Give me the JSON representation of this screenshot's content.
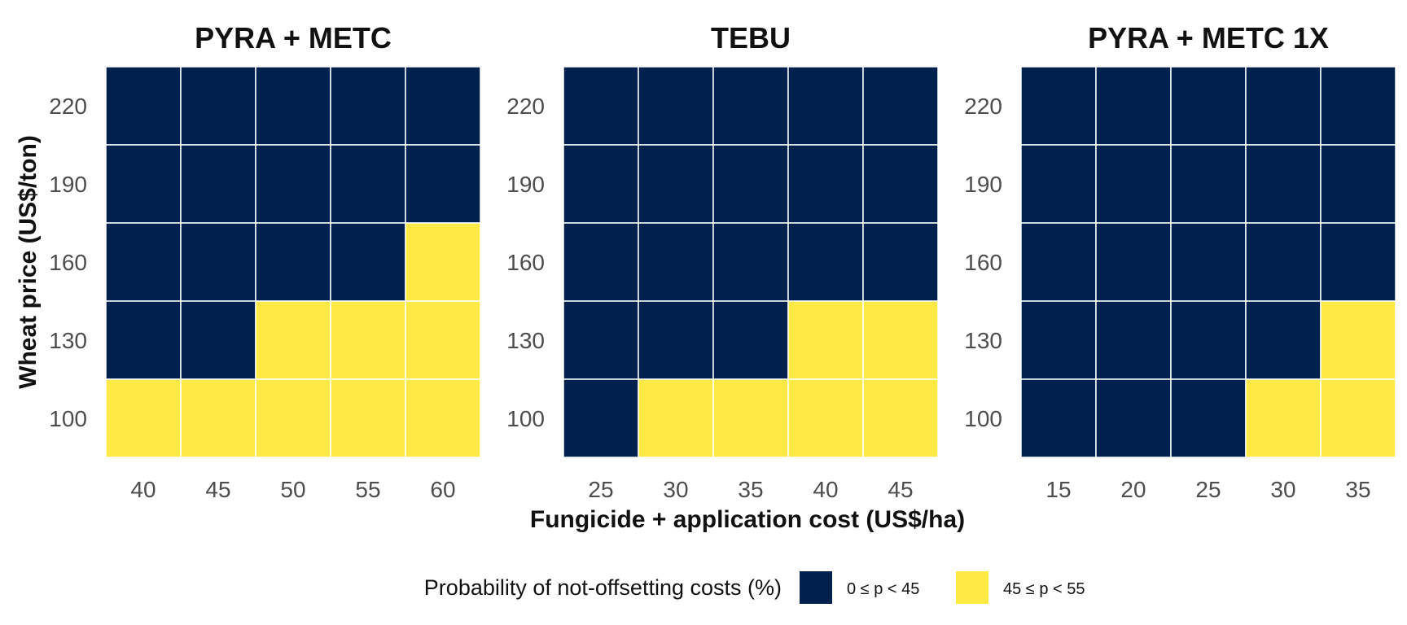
{
  "chart_data": {
    "type": "heatmap",
    "xlabel": "Fungicide + application cost (US$/ha)",
    "ylabel": "Wheat price (US$/ton)",
    "y_categories": [
      100,
      130,
      160,
      190,
      220
    ],
    "categories_legend": [
      {
        "label": "0 ≤ p < 45",
        "color": "#00204D"
      },
      {
        "label": "45 ≤ p < 55",
        "color": "#FEE945"
      }
    ],
    "legend": {
      "title": "Probability of not-offsetting costs (%)",
      "placement": "bottom"
    },
    "grid": false,
    "panels": [
      {
        "title": "PYRA + METC",
        "x_categories": [
          40,
          45,
          50,
          55,
          60
        ],
        "cells": [
          {
            "y": 220,
            "values": [
              "0 ≤ p < 45",
              "0 ≤ p < 45",
              "0 ≤ p < 45",
              "0 ≤ p < 45",
              "0 ≤ p < 45"
            ]
          },
          {
            "y": 190,
            "values": [
              "0 ≤ p < 45",
              "0 ≤ p < 45",
              "0 ≤ p < 45",
              "0 ≤ p < 45",
              "0 ≤ p < 45"
            ]
          },
          {
            "y": 160,
            "values": [
              "0 ≤ p < 45",
              "0 ≤ p < 45",
              "0 ≤ p < 45",
              "0 ≤ p < 45",
              "45 ≤ p < 55"
            ]
          },
          {
            "y": 130,
            "values": [
              "0 ≤ p < 45",
              "0 ≤ p < 45",
              "45 ≤ p < 55",
              "45 ≤ p < 55",
              "45 ≤ p < 55"
            ]
          },
          {
            "y": 100,
            "values": [
              "45 ≤ p < 55",
              "45 ≤ p < 55",
              "45 ≤ p < 55",
              "45 ≤ p < 55",
              "45 ≤ p < 55"
            ]
          }
        ]
      },
      {
        "title": "TEBU",
        "x_categories": [
          25,
          30,
          35,
          40,
          45
        ],
        "cells": [
          {
            "y": 220,
            "values": [
              "0 ≤ p < 45",
              "0 ≤ p < 45",
              "0 ≤ p < 45",
              "0 ≤ p < 45",
              "0 ≤ p < 45"
            ]
          },
          {
            "y": 190,
            "values": [
              "0 ≤ p < 45",
              "0 ≤ p < 45",
              "0 ≤ p < 45",
              "0 ≤ p < 45",
              "0 ≤ p < 45"
            ]
          },
          {
            "y": 160,
            "values": [
              "0 ≤ p < 45",
              "0 ≤ p < 45",
              "0 ≤ p < 45",
              "0 ≤ p < 45",
              "0 ≤ p < 45"
            ]
          },
          {
            "y": 130,
            "values": [
              "0 ≤ p < 45",
              "0 ≤ p < 45",
              "0 ≤ p < 45",
              "45 ≤ p < 55",
              "45 ≤ p < 55"
            ]
          },
          {
            "y": 100,
            "values": [
              "0 ≤ p < 45",
              "45 ≤ p < 55",
              "45 ≤ p < 55",
              "45 ≤ p < 55",
              "45 ≤ p < 55"
            ]
          }
        ]
      },
      {
        "title": "PYRA + METC 1X",
        "x_categories": [
          15,
          20,
          25,
          30,
          35
        ],
        "cells": [
          {
            "y": 220,
            "values": [
              "0 ≤ p < 45",
              "0 ≤ p < 45",
              "0 ≤ p < 45",
              "0 ≤ p < 45",
              "0 ≤ p < 45"
            ]
          },
          {
            "y": 190,
            "values": [
              "0 ≤ p < 45",
              "0 ≤ p < 45",
              "0 ≤ p < 45",
              "0 ≤ p < 45",
              "0 ≤ p < 45"
            ]
          },
          {
            "y": 160,
            "values": [
              "0 ≤ p < 45",
              "0 ≤ p < 45",
              "0 ≤ p < 45",
              "0 ≤ p < 45",
              "0 ≤ p < 45"
            ]
          },
          {
            "y": 130,
            "values": [
              "0 ≤ p < 45",
              "0 ≤ p < 45",
              "0 ≤ p < 45",
              "0 ≤ p < 45",
              "45 ≤ p < 55"
            ]
          },
          {
            "y": 100,
            "values": [
              "0 ≤ p < 45",
              "0 ≤ p < 45",
              "0 ≤ p < 45",
              "45 ≤ p < 55",
              "45 ≤ p < 55"
            ]
          }
        ]
      }
    ]
  }
}
